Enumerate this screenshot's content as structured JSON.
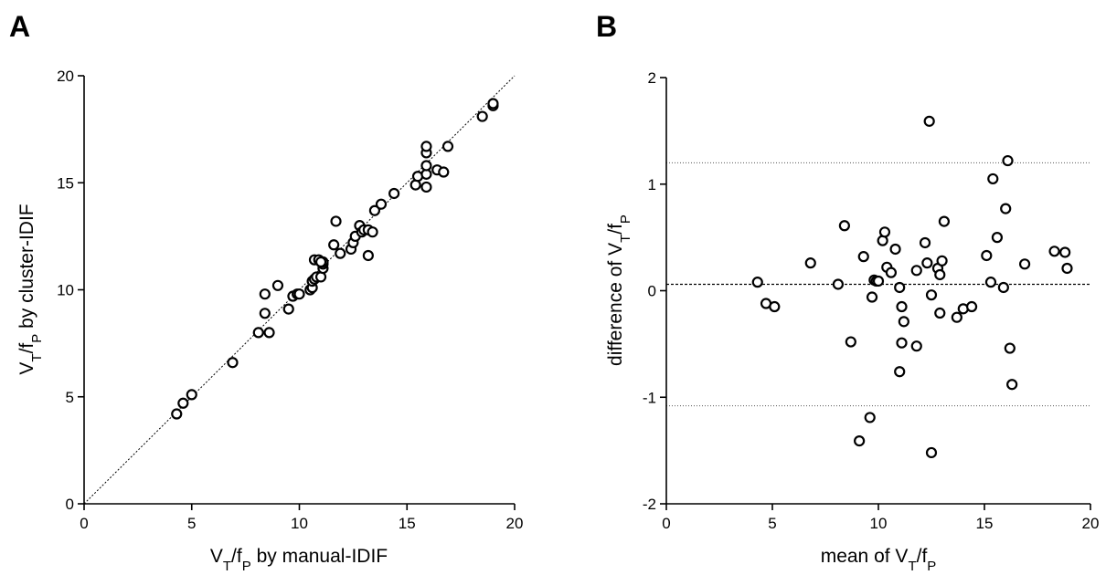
{
  "chart_data": [
    {
      "panel": "A",
      "type": "scatter",
      "xlabel_parts": [
        "V",
        "T",
        "/f",
        "P",
        " by manual-IDIF"
      ],
      "ylabel_parts": [
        "V",
        "T",
        "/f",
        "P",
        " by cluster-IDIF"
      ],
      "xlim": [
        0,
        20
      ],
      "ylim": [
        0,
        20
      ],
      "xticks": [
        0,
        5,
        10,
        15,
        20
      ],
      "yticks": [
        0,
        5,
        10,
        15,
        20
      ],
      "reference_line": "identity",
      "points": [
        [
          4.3,
          4.2
        ],
        [
          4.6,
          4.7
        ],
        [
          5.0,
          5.1
        ],
        [
          6.9,
          6.6
        ],
        [
          8.1,
          8.0
        ],
        [
          8.6,
          8.0
        ],
        [
          8.4,
          8.9
        ],
        [
          8.4,
          9.8
        ],
        [
          9.0,
          10.2
        ],
        [
          9.5,
          9.1
        ],
        [
          9.7,
          9.7
        ],
        [
          9.9,
          9.8
        ],
        [
          10.0,
          9.8
        ],
        [
          10.5,
          10.0
        ],
        [
          10.6,
          10.1
        ],
        [
          10.6,
          10.4
        ],
        [
          10.7,
          10.5
        ],
        [
          10.8,
          10.6
        ],
        [
          11.0,
          10.6
        ],
        [
          11.1,
          11.0
        ],
        [
          11.1,
          11.2
        ],
        [
          11.1,
          11.3
        ],
        [
          10.7,
          11.4
        ],
        [
          10.9,
          11.4
        ],
        [
          11.0,
          11.3
        ],
        [
          11.6,
          12.1
        ],
        [
          11.9,
          11.7
        ],
        [
          11.7,
          13.2
        ],
        [
          12.4,
          11.9
        ],
        [
          12.5,
          12.2
        ],
        [
          12.6,
          12.5
        ],
        [
          12.8,
          13.0
        ],
        [
          12.9,
          12.7
        ],
        [
          13.0,
          12.8
        ],
        [
          13.2,
          12.8
        ],
        [
          13.4,
          12.7
        ],
        [
          13.2,
          11.6
        ],
        [
          13.5,
          13.7
        ],
        [
          13.8,
          14.0
        ],
        [
          14.4,
          14.5
        ],
        [
          15.4,
          14.9
        ],
        [
          15.5,
          15.3
        ],
        [
          15.9,
          14.8
        ],
        [
          15.9,
          15.4
        ],
        [
          15.9,
          15.8
        ],
        [
          15.9,
          16.4
        ],
        [
          15.9,
          16.7
        ],
        [
          16.4,
          15.6
        ],
        [
          16.7,
          15.5
        ],
        [
          16.9,
          16.7
        ],
        [
          18.5,
          18.1
        ],
        [
          19.0,
          18.6
        ],
        [
          19.0,
          18.7
        ]
      ]
    },
    {
      "panel": "B",
      "type": "scatter",
      "xlabel_parts": [
        "mean of V",
        "T",
        "/f",
        "P",
        ""
      ],
      "ylabel_parts": [
        "difference of V",
        "T",
        "/f",
        "P",
        ""
      ],
      "xlim": [
        0,
        20
      ],
      "ylim": [
        -2,
        2
      ],
      "xticks": [
        0,
        5,
        10,
        15,
        20
      ],
      "yticks": [
        -2,
        -1,
        0,
        1,
        2
      ],
      "mean_difference": 0.06,
      "limits_of_agreement": [
        1.2,
        -1.08
      ],
      "points": [
        [
          4.3,
          0.08
        ],
        [
          4.7,
          -0.12
        ],
        [
          5.1,
          -0.15
        ],
        [
          6.8,
          0.26
        ],
        [
          8.1,
          0.06
        ],
        [
          8.4,
          0.61
        ],
        [
          8.7,
          -0.48
        ],
        [
          9.1,
          -1.41
        ],
        [
          9.3,
          0.32
        ],
        [
          9.6,
          -1.19
        ],
        [
          9.7,
          -0.06
        ],
        [
          9.8,
          0.1
        ],
        [
          9.9,
          0.09
        ],
        [
          10.0,
          0.09
        ],
        [
          10.2,
          0.47
        ],
        [
          10.3,
          0.55
        ],
        [
          10.4,
          0.22
        ],
        [
          10.6,
          0.17
        ],
        [
          10.8,
          0.39
        ],
        [
          11.0,
          0.03
        ],
        [
          11.0,
          -0.76
        ],
        [
          11.1,
          -0.49
        ],
        [
          11.1,
          -0.15
        ],
        [
          11.2,
          -0.29
        ],
        [
          11.8,
          -0.52
        ],
        [
          11.8,
          0.19
        ],
        [
          12.2,
          0.45
        ],
        [
          12.3,
          0.26
        ],
        [
          12.4,
          1.59
        ],
        [
          12.5,
          -0.04
        ],
        [
          12.5,
          -1.52
        ],
        [
          12.8,
          0.21
        ],
        [
          12.9,
          0.15
        ],
        [
          12.9,
          -0.21
        ],
        [
          13.0,
          0.28
        ],
        [
          13.1,
          0.65
        ],
        [
          13.7,
          -0.25
        ],
        [
          14.0,
          -0.17
        ],
        [
          14.4,
          -0.15
        ],
        [
          15.1,
          0.33
        ],
        [
          15.3,
          0.08
        ],
        [
          15.4,
          1.05
        ],
        [
          15.6,
          0.5
        ],
        [
          15.9,
          0.03
        ],
        [
          16.0,
          0.77
        ],
        [
          16.1,
          1.22
        ],
        [
          16.2,
          -0.54
        ],
        [
          16.3,
          -0.88
        ],
        [
          16.9,
          0.25
        ],
        [
          18.3,
          0.37
        ],
        [
          18.8,
          0.36
        ],
        [
          18.9,
          0.21
        ]
      ]
    }
  ],
  "panels": {
    "a_letter": "A",
    "b_letter": "B"
  }
}
